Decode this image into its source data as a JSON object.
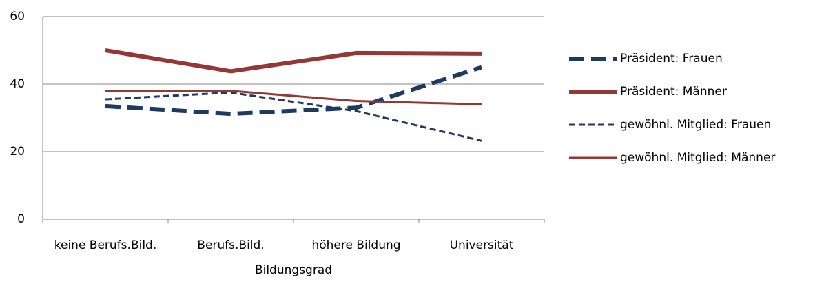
{
  "chart_data": {
    "type": "line",
    "x_label": "Bildungsgrad",
    "categories": [
      "keine Berufs.Bild.",
      "Berufs.Bild.",
      "höhere Bildung",
      "Universität"
    ],
    "series": [
      {
        "name": "Präsident: Frauen",
        "color": "#1f3a60",
        "style": "dashed",
        "weight": "thick",
        "values": [
          33.5,
          31.2,
          33,
          45
        ]
      },
      {
        "name": "Präsident: Männer",
        "color": "#953735",
        "style": "solid",
        "weight": "thick",
        "values": [
          50,
          43.8,
          49.2,
          49
        ]
      },
      {
        "name": "gewöhnl. Mitglied: Frauen",
        "color": "#1f3a60",
        "style": "dashed",
        "weight": "thin",
        "values": [
          35.5,
          37.5,
          32,
          23.2
        ]
      },
      {
        "name": "gewöhnl. Mitglied: Männer",
        "color": "#953735",
        "style": "solid",
        "weight": "thin",
        "values": [
          38,
          38,
          35,
          34
        ]
      }
    ],
    "ylim": [
      0,
      60
    ],
    "yticks": [
      0,
      20,
      40,
      60
    ],
    "grid": true,
    "legend": "right"
  }
}
